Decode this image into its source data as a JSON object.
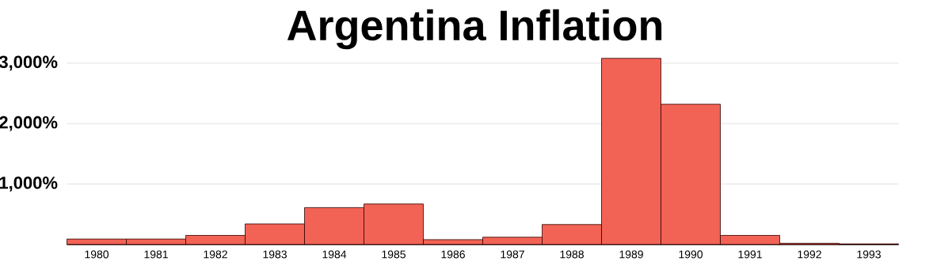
{
  "chart_data": {
    "type": "bar",
    "title": "Argentina Inflation",
    "categories": [
      "1980",
      "1981",
      "1982",
      "1983",
      "1984",
      "1985",
      "1986",
      "1987",
      "1988",
      "1989",
      "1990",
      "1991",
      "1992",
      "1993"
    ],
    "values": [
      90,
      90,
      150,
      340,
      610,
      670,
      80,
      120,
      330,
      3080,
      2320,
      150,
      20,
      10
    ],
    "color": "#f26355",
    "ylim": [
      0,
      3100
    ],
    "yticks": [
      {
        "value": 1000,
        "label": "1,000%"
      },
      {
        "value": 2000,
        "label": "2,000%"
      },
      {
        "value": 3000,
        "label": "3,000%"
      }
    ],
    "grid": "y"
  }
}
